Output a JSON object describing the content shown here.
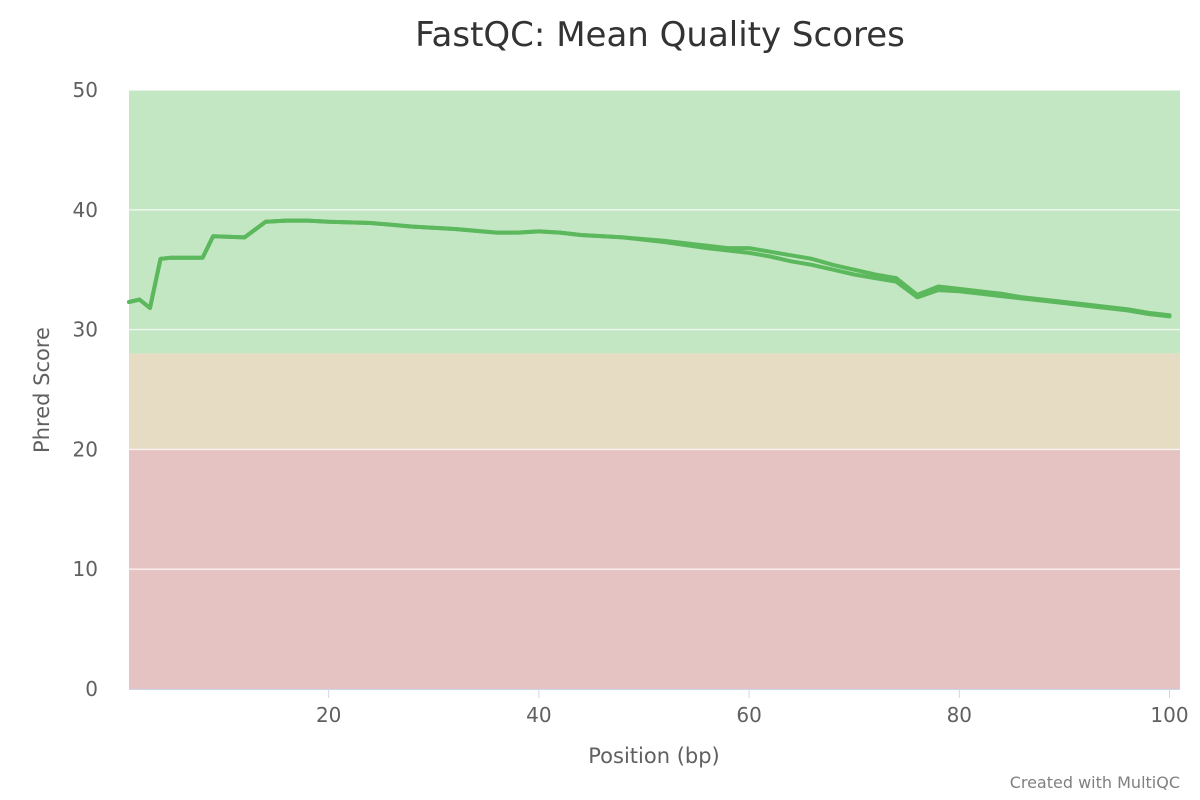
{
  "chart_data": {
    "type": "line",
    "title": "FastQC: Mean Quality Scores",
    "xlabel": "Position (bp)",
    "ylabel": "Phred Score",
    "xlim": [
      1,
      101
    ],
    "ylim": [
      0,
      50
    ],
    "x_ticks": [
      20,
      40,
      60,
      80,
      100
    ],
    "y_ticks": [
      0,
      10,
      20,
      30,
      40,
      50
    ],
    "grid": true,
    "legend": "none",
    "bands": [
      {
        "from": 28,
        "to": 50,
        "color": "#c3e6c3"
      },
      {
        "from": 20,
        "to": 28,
        "color": "#e6dcc3"
      },
      {
        "from": 0,
        "to": 20,
        "color": "#e6c3c3"
      }
    ],
    "line_color": "#5cb85c",
    "series": [
      {
        "x": [
          1,
          2,
          3,
          4,
          5,
          6,
          7,
          8,
          9,
          12,
          14,
          16,
          18,
          20,
          24,
          28,
          32,
          36,
          38,
          40,
          42,
          44,
          48,
          52,
          56,
          58,
          60,
          62,
          64,
          66,
          68,
          70,
          72,
          74,
          76,
          78,
          80,
          82,
          84,
          86,
          88,
          90,
          92,
          94,
          96,
          98,
          100
        ],
        "y": [
          32.3,
          32.5,
          31.8,
          35.9,
          36.0,
          36.0,
          36.0,
          36.0,
          37.8,
          37.7,
          39.0,
          39.1,
          39.1,
          39.0,
          38.9,
          38.6,
          38.4,
          38.1,
          38.1,
          38.2,
          38.1,
          37.9,
          37.7,
          37.4,
          37.0,
          36.8,
          36.8,
          36.5,
          36.2,
          35.9,
          35.4,
          35.0,
          34.6,
          34.3,
          32.9,
          33.6,
          33.4,
          33.2,
          33.0,
          32.7,
          32.5,
          32.3,
          32.1,
          31.9,
          31.7,
          31.4,
          31.2
        ]
      },
      {
        "x": [
          1,
          2,
          3,
          4,
          5,
          6,
          7,
          8,
          9,
          12,
          14,
          16,
          18,
          20,
          24,
          28,
          32,
          36,
          38,
          40,
          42,
          44,
          48,
          52,
          56,
          58,
          60,
          62,
          64,
          66,
          68,
          70,
          72,
          74,
          76,
          78,
          80,
          82,
          84,
          86,
          88,
          90,
          92,
          94,
          96,
          98,
          100
        ],
        "y": [
          32.3,
          32.5,
          31.8,
          35.9,
          36.0,
          36.0,
          36.0,
          36.0,
          37.8,
          37.7,
          39.0,
          39.1,
          39.1,
          39.0,
          38.9,
          38.6,
          38.4,
          38.1,
          38.1,
          38.2,
          38.1,
          37.9,
          37.7,
          37.3,
          36.8,
          36.6,
          36.4,
          36.1,
          35.7,
          35.4,
          35.0,
          34.6,
          34.3,
          34.0,
          32.7,
          33.3,
          33.2,
          33.0,
          32.8,
          32.6,
          32.4,
          32.2,
          32.0,
          31.8,
          31.6,
          31.3,
          31.1
        ]
      }
    ],
    "credit": "Created with MultiQC"
  }
}
